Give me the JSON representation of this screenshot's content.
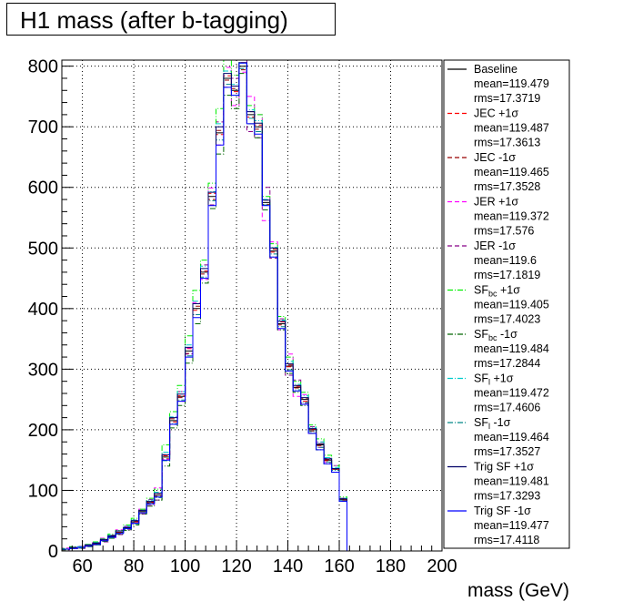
{
  "title": "H1 mass (after b-tagging)",
  "chart_data": {
    "type": "histogram",
    "title": "H1 mass (after b-tagging)",
    "xlabel": "mass (GeV)",
    "ylabel": "",
    "xlim": [
      52,
      200
    ],
    "ylim": [
      0,
      810
    ],
    "xticks": [
      60,
      80,
      100,
      120,
      140,
      160,
      180,
      200
    ],
    "yticks": [
      0,
      100,
      200,
      300,
      400,
      500,
      600,
      700,
      800
    ],
    "grid": true,
    "legend_position": "right",
    "bin_edges": [
      52,
      55,
      58,
      61,
      64,
      67,
      70,
      73,
      76,
      79,
      82,
      85,
      88,
      91,
      94,
      97,
      100,
      103,
      106,
      109,
      112,
      115,
      118,
      121,
      124,
      127,
      130,
      133,
      136,
      139,
      142,
      145,
      148,
      151,
      154,
      157,
      160,
      163
    ],
    "baseline": [
      3,
      5,
      6,
      9,
      12,
      18,
      24,
      31,
      38,
      48,
      65,
      80,
      92,
      155,
      215,
      255,
      330,
      400,
      460,
      585,
      690,
      780,
      760,
      800,
      720,
      700,
      575,
      495,
      375,
      305,
      270,
      250,
      200,
      175,
      150,
      135,
      85
    ],
    "series": [
      {
        "name": "Baseline",
        "mean": "mean=119.479",
        "rms": "rms=17.3719",
        "color": "#000000",
        "style": "solid",
        "d": [
          0,
          0,
          0,
          0,
          0,
          0,
          0,
          0,
          0,
          0,
          0,
          0,
          0,
          0,
          0,
          0,
          0,
          0,
          0,
          0,
          0,
          0,
          0,
          0,
          0,
          0,
          0,
          0,
          0,
          0,
          0,
          0,
          0,
          0,
          0,
          0,
          0
        ]
      },
      {
        "name": "JEC +1σ",
        "mean": "mean=119.487",
        "rms": "rms=17.3613",
        "color": "#ff0000",
        "style": "dash",
        "d": [
          0,
          1,
          0,
          -1,
          1,
          0,
          2,
          -1,
          1,
          0,
          -2,
          1,
          3,
          2,
          -2,
          1,
          4,
          -3,
          2,
          5,
          -3,
          4,
          -2,
          6,
          -4,
          3,
          4,
          -2,
          3,
          -1,
          2,
          -3,
          1,
          2,
          -1,
          0,
          1
        ]
      },
      {
        "name": "JEC -1σ",
        "mean": "mean=119.465",
        "rms": "rms=17.3528",
        "color": "#990000",
        "style": "dash",
        "d": [
          0,
          0,
          1,
          0,
          -1,
          1,
          -1,
          2,
          -1,
          1,
          2,
          -1,
          -2,
          -3,
          3,
          -2,
          -4,
          4,
          -3,
          -5,
          4,
          -3,
          3,
          -6,
          5,
          -4,
          -3,
          3,
          -2,
          2,
          -1,
          2,
          -2,
          -1,
          1,
          1,
          -1
        ]
      },
      {
        "name": "JER +1σ",
        "mean": "mean=119.372",
        "rms": "rms=17.576",
        "color": "#ff00ff",
        "style": "dash",
        "d": [
          2,
          1,
          2,
          1,
          2,
          3,
          -2,
          4,
          3,
          -3,
          4,
          -5,
          12,
          -4,
          6,
          -8,
          5,
          10,
          -12,
          14,
          -20,
          18,
          -25,
          -10,
          30,
          20,
          -30,
          15,
          -10,
          20,
          -15,
          8,
          -6,
          5,
          -4,
          6,
          -3
        ]
      },
      {
        "name": "JER -1σ",
        "mean": "mean=119.6",
        "rms": "rms=17.1819",
        "color": "#880088",
        "style": "dash",
        "d": [
          -1,
          -1,
          -2,
          -1,
          -2,
          -3,
          2,
          -4,
          -3,
          3,
          -4,
          5,
          -8,
          4,
          -6,
          8,
          -5,
          -10,
          12,
          -14,
          18,
          -15,
          20,
          10,
          -28,
          -18,
          25,
          -12,
          8,
          -15,
          12,
          -6,
          5,
          -4,
          3,
          -5,
          2
        ]
      },
      {
        "name": "SF_bc +1σ",
        "mean": "mean=119.405",
        "rms": "rms=17.4023",
        "color": "#00ee00",
        "style": "dashdot",
        "d": [
          1,
          2,
          1,
          2,
          3,
          2,
          4,
          3,
          5,
          6,
          4,
          7,
          10,
          20,
          15,
          18,
          25,
          30,
          20,
          22,
          40,
          30,
          25,
          10,
          15,
          20,
          10,
          12,
          12,
          15,
          10,
          12,
          8,
          10,
          8,
          6,
          4
        ]
      },
      {
        "name": "SF_bc -1σ",
        "mean": "mean=119.484",
        "rms": "rms=17.2844",
        "color": "#006600",
        "style": "dashdot",
        "d": [
          -1,
          -1,
          -1,
          -2,
          -2,
          -2,
          -3,
          -3,
          -4,
          -5,
          -4,
          -6,
          -8,
          -15,
          -12,
          -15,
          -20,
          -25,
          -18,
          -20,
          -35,
          -28,
          -30,
          -12,
          -15,
          -18,
          -12,
          -10,
          -10,
          -12,
          -8,
          -10,
          -6,
          -8,
          -6,
          -5,
          -3
        ]
      },
      {
        "name": "SF_l +1σ",
        "mean": "mean=119.472",
        "rms": "rms=17.4606",
        "color": "#00cccc",
        "style": "dashdot",
        "d": [
          0,
          1,
          1,
          1,
          2,
          1,
          2,
          2,
          3,
          3,
          2,
          4,
          5,
          8,
          6,
          8,
          10,
          12,
          10,
          8,
          15,
          12,
          10,
          5,
          8,
          10,
          5,
          6,
          6,
          8,
          5,
          6,
          4,
          5,
          4,
          3,
          2
        ]
      },
      {
        "name": "SF_l -1σ",
        "mean": "mean=119.464",
        "rms": "rms=17.3527",
        "color": "#008888",
        "style": "dashdot",
        "d": [
          0,
          -1,
          -1,
          -1,
          -1,
          -1,
          -2,
          -2,
          -2,
          -3,
          -2,
          -3,
          -4,
          -6,
          -5,
          -6,
          -8,
          -10,
          -8,
          -7,
          -12,
          -10,
          -8,
          -4,
          -6,
          -8,
          -4,
          -5,
          -5,
          -6,
          -4,
          -5,
          -3,
          -4,
          -3,
          -2,
          -2
        ]
      },
      {
        "name": "Trig SF +1σ",
        "mean": "mean=119.481",
        "rms": "rms=17.3293",
        "color": "#000066",
        "style": "solid",
        "d": [
          0,
          1,
          0,
          1,
          1,
          1,
          1,
          2,
          1,
          2,
          2,
          2,
          3,
          4,
          5,
          4,
          6,
          8,
          6,
          7,
          10,
          8,
          7,
          6,
          5,
          6,
          4,
          5,
          4,
          4,
          3,
          3,
          2,
          2,
          2,
          1,
          1
        ]
      },
      {
        "name": "Trig SF -1σ",
        "mean": "mean=119.477",
        "rms": "rms=17.4118",
        "color": "#0000ff",
        "style": "solid",
        "d": [
          0,
          -1,
          0,
          -1,
          -1,
          -1,
          -1,
          -2,
          -1,
          -2,
          -2,
          -2,
          -3,
          -5,
          -6,
          -8,
          -10,
          -15,
          -10,
          -15,
          -20,
          -15,
          -8,
          5,
          -15,
          -12,
          -5,
          -10,
          -8,
          -8,
          -6,
          -8,
          -6,
          -8,
          -6,
          -5,
          -3
        ]
      }
    ]
  }
}
